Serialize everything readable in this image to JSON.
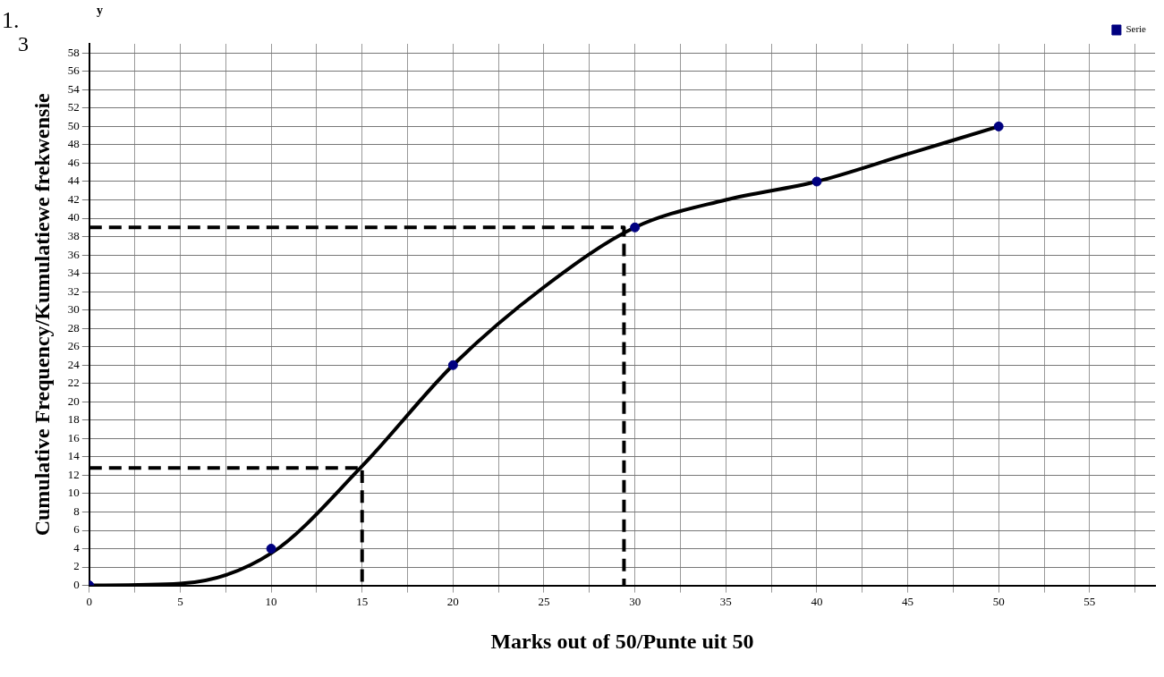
{
  "chart_data": {
    "type": "line",
    "xlabel": "Marks out of 50/Punte uit 50",
    "ylabel": "Cumulative Frequency/Kumulatiewe frekwensie",
    "annotations": [
      "1.",
      "3",
      "y"
    ],
    "xlim": [
      0,
      58.6
    ],
    "ylim": [
      0,
      59
    ],
    "xticks": [
      0,
      {
        "value": 2.5,
        "label": null
      },
      5,
      {
        "value": 7.5,
        "label": null
      },
      10,
      {
        "value": 12.5,
        "label": null
      },
      15,
      {
        "value": 17.5,
        "label": null
      },
      20,
      {
        "value": 22.5,
        "label": null
      },
      25,
      {
        "value": 27.5,
        "label": null
      },
      30,
      {
        "value": 32.5,
        "label": null
      },
      35,
      {
        "value": 37.5,
        "label": null
      },
      40,
      {
        "value": 42.5,
        "label": null
      },
      45,
      {
        "value": 47.5,
        "label": null
      },
      50,
      {
        "value": 52.5,
        "label": null
      },
      55,
      {
        "value": 57.5,
        "label": null
      }
    ],
    "yticks": [
      0,
      2,
      4,
      6,
      8,
      10,
      12,
      14,
      16,
      18,
      20,
      22,
      24,
      26,
      28,
      30,
      32,
      34,
      36,
      38,
      40,
      42,
      44,
      46,
      48,
      50,
      52,
      54,
      56,
      58
    ],
    "grid": true,
    "legend": "top right",
    "series": [
      {
        "name": "Serie",
        "type": "scatter",
        "marker": "circle",
        "color": "#000080",
        "x": [
          0,
          10,
          20,
          30,
          40,
          50
        ],
        "values": [
          0,
          4,
          24,
          39,
          44,
          50
        ]
      },
      {
        "marker": "none",
        "line_style": "solid",
        "color": "#000000",
        "x": [
          0,
          5,
          10,
          15,
          20,
          25,
          30,
          35,
          40,
          45,
          50
        ],
        "values": [
          0,
          0.2,
          3.5,
          13,
          24,
          32.5,
          39,
          42,
          44,
          47,
          50
        ]
      },
      {
        "type": "line",
        "marker": "none",
        "line_style": "dashed",
        "color": "#000000",
        "x": [
          0,
          15,
          15
        ],
        "values": [
          12.8,
          12.8,
          0
        ]
      },
      {
        "type": "line",
        "marker": "none",
        "line_style": "dashed",
        "color": "#000000",
        "x": [
          0,
          29.4,
          29.4
        ],
        "values": [
          39,
          39,
          0
        ]
      }
    ]
  }
}
